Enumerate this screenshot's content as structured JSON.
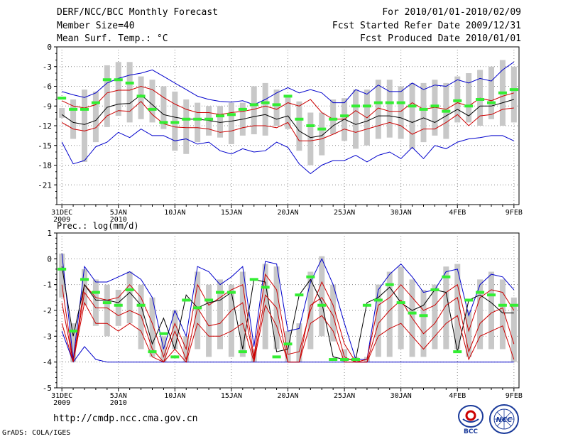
{
  "header": {
    "title": "DERF/NCC/BCC Monthly Forecast",
    "member_size": "Member Size=40",
    "variable": "Mean Surf. Temp.: °C",
    "period": "For 2010/01/01-2010/02/09",
    "fcst_started": "Fcst Started Refer Date 2009/12/31",
    "fcst_produced": "Fcst Produced Date 2010/01/01"
  },
  "footer": {
    "url": "http://cmdp.ncc.cma.gov.cn",
    "credit": "GrADS: COLA/IGES",
    "logo_left": "BCC",
    "logo_right": "NCC"
  },
  "chart_data": [
    {
      "type": "line",
      "title": "Mean Surf. Temp.: °C",
      "x_tick_labels": [
        "31DEC\n2009",
        "5JAN\n2010",
        "10JAN",
        "15JAN",
        "20JAN",
        "25JAN",
        "30JAN",
        "4FEB",
        "9FEB"
      ],
      "x": [
        0,
        1,
        2,
        3,
        4,
        5,
        6,
        7,
        8,
        9,
        10,
        11,
        12,
        13,
        14,
        15,
        16,
        17,
        18,
        19,
        20,
        21,
        22,
        23,
        24,
        25,
        26,
        27,
        28,
        29,
        30,
        31,
        32,
        33,
        34,
        35,
        36,
        37,
        38,
        39,
        40
      ],
      "ylim": [
        -24,
        0
      ],
      "yticks": [
        0,
        -3,
        -6,
        -9,
        -12,
        -15,
        -18,
        -21
      ],
      "series": [
        {
          "name": "max",
          "color": "#0000cc",
          "values": [
            -6.8,
            -7.3,
            -7.7,
            -7.0,
            -5.5,
            -4.8,
            -4.3,
            -4.0,
            -3.5,
            -4.5,
            -5.5,
            -6.5,
            -7.5,
            -8.0,
            -8.3,
            -8.4,
            -8.2,
            -8.8,
            -8.0,
            -7.0,
            -6.2,
            -7.0,
            -6.5,
            -7.0,
            -8.5,
            -8.5,
            -6.5,
            -7.2,
            -5.8,
            -6.8,
            -6.8,
            -5.5,
            -6.5,
            -5.8,
            -6.0,
            -5.0,
            -5.5,
            -4.8,
            -5.2,
            -3.5,
            -2.3
          ]
        },
        {
          "name": "upper",
          "color": "#cc0000",
          "values": [
            -8.2,
            -9.0,
            -9.3,
            -8.8,
            -7.0,
            -6.6,
            -6.6,
            -6.0,
            -6.5,
            -7.7,
            -8.7,
            -9.5,
            -10.0,
            -10.0,
            -10.3,
            -10.0,
            -9.8,
            -9.5,
            -9.0,
            -9.5,
            -8.5,
            -9.0,
            -8.0,
            -10.0,
            -11.0,
            -11.0,
            -9.7,
            -10.8,
            -9.3,
            -9.8,
            -9.8,
            -8.5,
            -9.5,
            -9.2,
            -9.5,
            -8.5,
            -9.0,
            -7.8,
            -8.2,
            -7.5,
            -7.0
          ]
        },
        {
          "name": "mean",
          "color": "#000000",
          "values": [
            -10.3,
            -11.5,
            -11.8,
            -11.2,
            -9.2,
            -8.7,
            -8.6,
            -7.3,
            -8.8,
            -10.3,
            -10.7,
            -11.0,
            -11.0,
            -11.2,
            -11.5,
            -11.3,
            -11.0,
            -10.6,
            -10.3,
            -11.0,
            -10.5,
            -12.8,
            -13.8,
            -13.5,
            -12.0,
            -11.0,
            -11.8,
            -11.3,
            -10.5,
            -10.5,
            -10.8,
            -11.5,
            -10.8,
            -11.5,
            -10.5,
            -9.5,
            -10.5,
            -9.0,
            -9.0,
            -8.5,
            -8.0
          ]
        },
        {
          "name": "lower",
          "color": "#cc0000",
          "values": [
            -11.5,
            -12.5,
            -12.8,
            -12.3,
            -10.5,
            -9.7,
            -9.8,
            -8.3,
            -10.3,
            -11.7,
            -12.2,
            -12.3,
            -12.3,
            -12.5,
            -13.0,
            -12.8,
            -12.3,
            -12.0,
            -12.0,
            -12.3,
            -11.5,
            -14.3,
            -14.3,
            -14.0,
            -13.3,
            -12.5,
            -13.0,
            -12.5,
            -12.0,
            -11.5,
            -12.0,
            -13.3,
            -12.5,
            -12.5,
            -11.5,
            -10.3,
            -12.0,
            -10.5,
            -10.3,
            -9.5,
            -9.3
          ]
        },
        {
          "name": "min",
          "color": "#0000cc",
          "values": [
            -14.5,
            -17.8,
            -17.3,
            -15.2,
            -14.5,
            -13.0,
            -13.8,
            -12.5,
            -13.5,
            -13.5,
            -14.3,
            -14.0,
            -14.8,
            -14.5,
            -15.8,
            -16.3,
            -15.5,
            -16.0,
            -15.8,
            -14.5,
            -15.3,
            -17.8,
            -19.3,
            -18.0,
            -17.3,
            -17.3,
            -16.5,
            -17.5,
            -16.5,
            -16.0,
            -17.0,
            -15.3,
            -17.0,
            -15.0,
            -15.5,
            -14.5,
            -14.0,
            -13.8,
            -13.5,
            -13.5,
            -14.3
          ]
        }
      ],
      "box_spread": [
        [
          -9.3,
          -10.8
        ],
        [
          -8.0,
          -14.0
        ],
        [
          -6.5,
          -17.5
        ],
        [
          -6.8,
          -14.5
        ],
        [
          -2.8,
          -12.2
        ],
        [
          -2.3,
          -10.5
        ],
        [
          -2.3,
          -11.5
        ],
        [
          -4.5,
          -11.0
        ],
        [
          -5.0,
          -11.5
        ],
        [
          -6.0,
          -12.5
        ],
        [
          -6.8,
          -15.8
        ],
        [
          -8.0,
          -16.3
        ],
        [
          -8.5,
          -14.5
        ],
        [
          -9.0,
          -13.5
        ],
        [
          -9.0,
          -13.8
        ],
        [
          -8.5,
          -14.8
        ],
        [
          -8.5,
          -13.5
        ],
        [
          -6.0,
          -13.3
        ],
        [
          -5.5,
          -13.5
        ],
        [
          -6.5,
          -12.0
        ],
        [
          -7.5,
          -12.5
        ],
        [
          -8.3,
          -15.8
        ],
        [
          -10.0,
          -18.0
        ],
        [
          -10.0,
          -16.5
        ],
        [
          -8.0,
          -13.3
        ],
        [
          -7.8,
          -14.3
        ],
        [
          -6.5,
          -15.5
        ],
        [
          -6.5,
          -15.0
        ],
        [
          -5.0,
          -14.0
        ],
        [
          -5.0,
          -13.8
        ],
        [
          -6.0,
          -14.0
        ],
        [
          -5.5,
          -15.5
        ],
        [
          -5.5,
          -14.5
        ],
        [
          -5.0,
          -13.5
        ],
        [
          -5.5,
          -14.0
        ],
        [
          -4.5,
          -11.5
        ],
        [
          -4.0,
          -11.5
        ],
        [
          -3.5,
          -12.0
        ],
        [
          -3.0,
          -11.0
        ],
        [
          -2.0,
          -12.0
        ],
        [
          -3.0,
          -11.5
        ]
      ],
      "member_marks": [
        -7.8,
        -9.5,
        -9.5,
        -8.5,
        -5.0,
        -5.0,
        -5.5,
        -7.5,
        -9.5,
        -11.5,
        -11.5,
        -11.0,
        -11.0,
        -11.0,
        -10.5,
        -10.3,
        -9.5,
        -8.8,
        -8.5,
        -8.8,
        -7.5,
        -11.0,
        -12.0,
        -12.5,
        -11.0,
        -10.5,
        -9.0,
        -9.0,
        -8.5,
        -8.5,
        -8.5,
        -9.0,
        -9.5,
        -9.0,
        -9.8,
        -8.2,
        -9.0,
        -8.0,
        -8.5,
        -7.0,
        -6.5
      ]
    },
    {
      "type": "line",
      "title": "Prec.: log(mm/d)",
      "x_tick_labels": [
        "31DEC\n2009",
        "5JAN\n2010",
        "10JAN",
        "15JAN",
        "20JAN",
        "25JAN",
        "30JAN",
        "4FEB",
        "9FEB"
      ],
      "x": [
        0,
        1,
        2,
        3,
        4,
        5,
        6,
        7,
        8,
        9,
        10,
        11,
        12,
        13,
        14,
        15,
        16,
        17,
        18,
        19,
        20,
        21,
        22,
        23,
        24,
        25,
        26,
        27,
        28,
        29,
        30,
        31,
        32,
        33,
        34,
        35,
        36,
        37,
        38,
        39,
        40
      ],
      "ylim": [
        -5,
        1
      ],
      "yticks": [
        1,
        0,
        -1,
        -2,
        -3,
        -4,
        -5
      ],
      "series": [
        {
          "name": "max",
          "color": "#0000cc",
          "values": [
            0.2,
            -3.9,
            -0.3,
            -0.9,
            -0.9,
            -0.7,
            -0.5,
            -0.8,
            -1.5,
            -3.5,
            -2.0,
            -3.0,
            -0.3,
            -0.5,
            -1.0,
            -0.7,
            -0.3,
            -3.4,
            -0.1,
            -0.2,
            -2.8,
            -2.7,
            -0.9,
            0.0,
            -1.0,
            -2.5,
            -3.9,
            -3.9,
            -1.2,
            -0.6,
            -0.2,
            -0.7,
            -1.3,
            -1.2,
            -0.5,
            -0.4,
            -2.2,
            -1.0,
            -0.6,
            -0.7,
            -1.2
          ]
        },
        {
          "name": "upper",
          "color": "#cc0000",
          "values": [
            -1.0,
            -4.0,
            -1.0,
            -1.5,
            -1.6,
            -1.5,
            -1.0,
            -1.5,
            -2.5,
            -3.8,
            -2.5,
            -3.5,
            -1.0,
            -1.8,
            -1.5,
            -1.2,
            -1.0,
            -3.8,
            -0.6,
            -1.2,
            -3.7,
            -3.6,
            -2.0,
            -0.9,
            -1.8,
            -3.3,
            -4.0,
            -3.9,
            -1.8,
            -1.5,
            -1.0,
            -1.5,
            -2.0,
            -1.8,
            -1.3,
            -1.0,
            -2.8,
            -1.5,
            -1.2,
            -1.3,
            -2.0
          ]
        },
        {
          "name": "mean",
          "color": "#000000",
          "values": [
            -0.3,
            -3.0,
            -1.0,
            -1.6,
            -1.6,
            -1.7,
            -1.3,
            -1.8,
            -3.3,
            -2.3,
            -3.5,
            -1.4,
            -1.9,
            -1.7,
            -1.6,
            -1.3,
            -3.5,
            -0.8,
            -0.9,
            -3.6,
            -3.5,
            -1.4,
            -0.8,
            -1.7,
            -3.8,
            -3.9,
            -3.9,
            -1.7,
            -1.5,
            -1.1,
            -1.7,
            -2.0,
            -1.8,
            -1.2,
            -1.3,
            -3.6,
            -1.6,
            -1.4,
            -1.7,
            -2.1,
            -2.1
          ]
        },
        {
          "name": "lower",
          "color": "#cc0000",
          "values": [
            -1.7,
            -4.0,
            -1.3,
            -1.9,
            -1.9,
            -2.2,
            -2.0,
            -2.2,
            -3.5,
            -4.0,
            -2.8,
            -3.9,
            -1.9,
            -2.6,
            -2.5,
            -2.0,
            -1.7,
            -3.9,
            -1.4,
            -1.9,
            -4.0,
            -4.0,
            -1.8,
            -1.5,
            -2.2,
            -3.8,
            -4.0,
            -4.0,
            -2.5,
            -2.0,
            -1.6,
            -2.3,
            -2.9,
            -2.5,
            -1.8,
            -1.5,
            -3.6,
            -2.5,
            -2.1,
            -1.9,
            -3.3
          ]
        },
        {
          "name": "min",
          "color": "#0000cc",
          "values": [
            -2.8,
            -4.0,
            -3.4,
            -3.9,
            -4.0,
            -4.0,
            -4.0,
            -4.0,
            -4.0,
            -4.0,
            -4.0,
            -4.0,
            -4.0,
            -4.0,
            -4.0,
            -4.0,
            -4.0,
            -4.0,
            -4.0,
            -4.0,
            -4.0,
            -4.0,
            -4.0,
            -4.0,
            -4.0,
            -4.0,
            -4.0,
            -4.0,
            -4.0,
            -4.0,
            -4.0,
            -4.0,
            -4.0,
            -4.0,
            -4.0,
            -4.0,
            -4.0,
            -4.0,
            -4.0,
            -4.0,
            -4.0
          ]
        },
        {
          "name": "lowest-red",
          "color": "#cc0000",
          "values": [
            -2.5,
            -4.0,
            -1.7,
            -2.5,
            -2.5,
            -2.8,
            -2.5,
            -2.8,
            -3.8,
            -4.0,
            -3.5,
            -4.0,
            -2.5,
            -3.0,
            -3.0,
            -2.8,
            -2.5,
            -4.0,
            -1.8,
            -2.6,
            -4.0,
            -4.0,
            -2.5,
            -2.2,
            -2.8,
            -4.0,
            -4.0,
            -4.0,
            -3.0,
            -2.7,
            -2.5,
            -3.0,
            -3.5,
            -3.0,
            -2.5,
            -2.2,
            -3.9,
            -3.0,
            -2.8,
            -2.6,
            -3.9
          ]
        }
      ],
      "box_spread": [
        [
          0.2,
          -1.5
        ],
        [
          -2.5,
          -4.0
        ],
        [
          -0.4,
          -1.8
        ],
        [
          -0.8,
          -2.6
        ],
        [
          -1.0,
          -3.0
        ],
        [
          -1.2,
          -2.6
        ],
        [
          -0.5,
          -2.5
        ],
        [
          -1.0,
          -3.5
        ],
        [
          -1.5,
          -3.8
        ],
        [
          -3.0,
          -4.0
        ],
        [
          -2.0,
          -3.5
        ],
        [
          -3.0,
          -4.0
        ],
        [
          -0.5,
          -3.5
        ],
        [
          -1.0,
          -3.8
        ],
        [
          -0.8,
          -3.5
        ],
        [
          -1.0,
          -3.8
        ],
        [
          -0.5,
          -3.8
        ],
        [
          -3.5,
          -4.0
        ],
        [
          -0.2,
          -3.5
        ],
        [
          -0.3,
          -3.5
        ],
        [
          -2.8,
          -4.0
        ],
        [
          -2.5,
          -4.0
        ],
        [
          -0.5,
          -3.5
        ],
        [
          0.1,
          -3.0
        ],
        [
          -1.0,
          -3.2
        ],
        [
          -3.5,
          -4.0
        ],
        [
          -3.8,
          -4.0
        ],
        [
          -3.8,
          -4.0
        ],
        [
          -1.0,
          -3.8
        ],
        [
          -0.5,
          -3.8
        ],
        [
          -0.3,
          -3.5
        ],
        [
          -0.8,
          -3.8
        ],
        [
          -1.2,
          -3.8
        ],
        [
          -1.0,
          -3.5
        ],
        [
          -0.3,
          -3.5
        ],
        [
          -0.2,
          -3.5
        ],
        [
          -2.0,
          -3.8
        ],
        [
          -0.8,
          -3.5
        ],
        [
          -0.5,
          -3.5
        ],
        [
          -0.8,
          -3.5
        ],
        [
          -1.5,
          -4.0
        ]
      ],
      "member_marks": [
        -0.4,
        -2.8,
        -0.8,
        -1.3,
        -1.7,
        -1.8,
        -1.2,
        -1.8,
        -3.6,
        -2.9,
        -3.8,
        -1.6,
        -1.9,
        -1.6,
        -1.3,
        -1.3,
        -3.6,
        -0.8,
        -1.1,
        -3.8,
        -3.3,
        -1.4,
        -0.7,
        -1.8,
        -3.9,
        -3.9,
        -3.9,
        -1.8,
        -1.6,
        -1.0,
        -1.7,
        -2.1,
        -2.2,
        -1.2,
        -0.7,
        -3.6,
        -1.6,
        -1.3,
        -1.4,
        -1.8,
        -1.8
      ]
    }
  ]
}
